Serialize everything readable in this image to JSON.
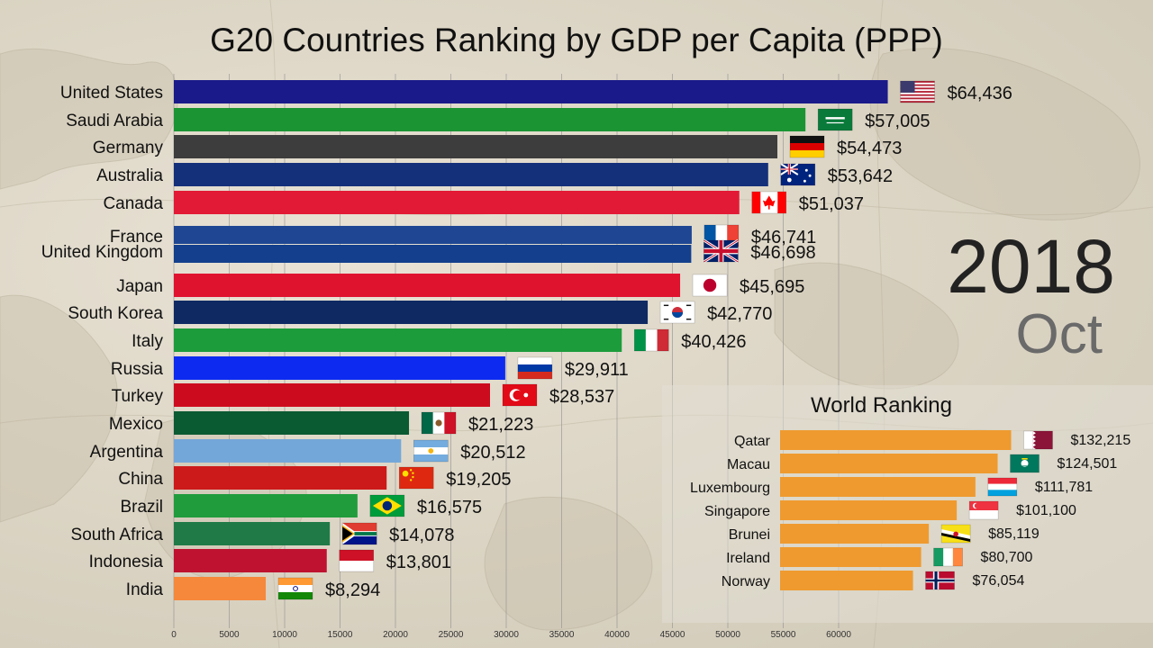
{
  "chart_data": [
    {
      "type": "bar",
      "orientation": "horizontal",
      "title": "G20 Countries Ranking by GDP per Capita (PPP)",
      "period": {
        "year": "2018",
        "month": "Oct"
      },
      "xlim": [
        0,
        65000
      ],
      "x_ticks": [
        0,
        5000,
        10000,
        15000,
        20000,
        25000,
        30000,
        35000,
        40000,
        45000,
        50000,
        55000,
        60000
      ],
      "grid": true,
      "value_prefix": "$",
      "categories": [
        "United States",
        "Saudi Arabia",
        "Germany",
        "Australia",
        "Canada",
        "France",
        "United Kingdom",
        "Japan",
        "South Korea",
        "Italy",
        "Russia",
        "Turkey",
        "Mexico",
        "Argentina",
        "China",
        "Brazil",
        "South Africa",
        "Indonesia",
        "India"
      ],
      "values": [
        64436,
        57005,
        54473,
        53642,
        51037,
        46741,
        46698,
        45695,
        42770,
        40426,
        29911,
        28537,
        21223,
        20512,
        19205,
        16575,
        14078,
        13801,
        8294
      ],
      "value_labels": [
        "$64,436",
        "$57,005",
        "$54,473",
        "$53,642",
        "$51,037",
        "$46,741",
        "$46,698",
        "$45,695",
        "$42,770",
        "$40,426",
        "$29,911",
        "$28,537",
        "$21,223",
        "$20,512",
        "$19,205",
        "$16,575",
        "$14,078",
        "$13,801",
        "$8,294"
      ],
      "colors": [
        "#1a1a8a",
        "#1b9433",
        "#3d3d3d",
        "#15307a",
        "#e31a35",
        "#1e4693",
        "#133f8c",
        "#e0132f",
        "#0f2a63",
        "#1d9c3b",
        "#0d2bf0",
        "#cc0c1e",
        "#0a5a32",
        "#74a7d9",
        "#cc1a1a",
        "#209c3c",
        "#1f7a48",
        "#bf1230",
        "#f5883b"
      ],
      "flags": [
        "us-flag-icon",
        "saudi-arabia-flag-icon",
        "germany-flag-icon",
        "australia-flag-icon",
        "canada-flag-icon",
        "france-flag-icon",
        "united-kingdom-flag-icon",
        "japan-flag-icon",
        "south-korea-flag-icon",
        "italy-flag-icon",
        "russia-flag-icon",
        "turkey-flag-icon",
        "mexico-flag-icon",
        "argentina-flag-icon",
        "china-flag-icon",
        "brazil-flag-icon",
        "south-africa-flag-icon",
        "indonesia-flag-icon",
        "india-flag-icon"
      ]
    },
    {
      "type": "bar",
      "orientation": "horizontal",
      "title": "World Ranking",
      "xlim": [
        0,
        135000
      ],
      "bar_color": "#ef9a2f",
      "categories": [
        "Qatar",
        "Macau",
        "Luxembourg",
        "Singapore",
        "Brunei",
        "Ireland",
        "Norway"
      ],
      "values": [
        132215,
        124501,
        111781,
        101100,
        85119,
        80700,
        76054
      ],
      "value_labels": [
        "$132,215",
        "$124,501",
        "$111,781",
        "$101,100",
        "$85,119",
        "$80,700",
        "$76,054"
      ],
      "flags": [
        "qatar-flag-icon",
        "macau-flag-icon",
        "luxembourg-flag-icon",
        "singapore-flag-icon",
        "brunei-flag-icon",
        "ireland-flag-icon",
        "norway-flag-icon"
      ]
    }
  ]
}
